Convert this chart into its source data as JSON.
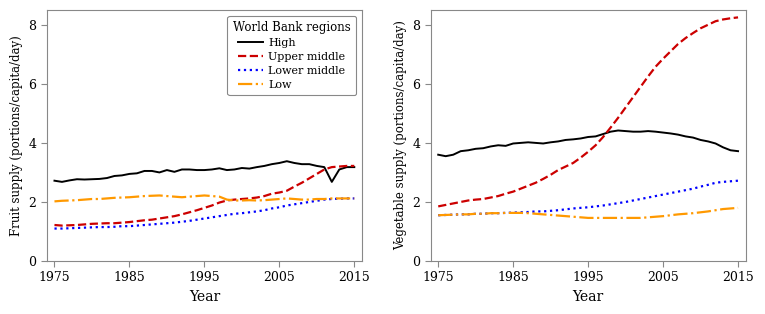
{
  "years": [
    1975,
    1976,
    1977,
    1978,
    1979,
    1980,
    1981,
    1982,
    1983,
    1984,
    1985,
    1986,
    1987,
    1988,
    1989,
    1990,
    1991,
    1992,
    1993,
    1994,
    1995,
    1996,
    1997,
    1998,
    1999,
    2000,
    2001,
    2002,
    2003,
    2004,
    2005,
    2006,
    2007,
    2008,
    2009,
    2010,
    2011,
    2012,
    2013,
    2014,
    2015
  ],
  "fruit_high": [
    2.72,
    2.68,
    2.73,
    2.77,
    2.76,
    2.77,
    2.78,
    2.81,
    2.88,
    2.9,
    2.95,
    2.97,
    3.05,
    3.05,
    3.0,
    3.08,
    3.02,
    3.1,
    3.1,
    3.08,
    3.08,
    3.1,
    3.14,
    3.08,
    3.1,
    3.15,
    3.13,
    3.18,
    3.22,
    3.28,
    3.32,
    3.38,
    3.32,
    3.28,
    3.28,
    3.22,
    3.18,
    2.68,
    3.1,
    3.18,
    3.18
  ],
  "fruit_upper_middle": [
    1.22,
    1.2,
    1.21,
    1.22,
    1.24,
    1.26,
    1.27,
    1.28,
    1.28,
    1.3,
    1.32,
    1.35,
    1.38,
    1.4,
    1.44,
    1.48,
    1.52,
    1.58,
    1.65,
    1.72,
    1.8,
    1.88,
    1.98,
    2.05,
    2.08,
    2.1,
    2.12,
    2.15,
    2.2,
    2.28,
    2.32,
    2.38,
    2.52,
    2.65,
    2.8,
    2.95,
    3.1,
    3.18,
    3.2,
    3.22,
    3.22
  ],
  "fruit_lower_middle": [
    1.1,
    1.1,
    1.11,
    1.12,
    1.13,
    1.14,
    1.15,
    1.15,
    1.16,
    1.18,
    1.18,
    1.2,
    1.22,
    1.24,
    1.26,
    1.28,
    1.3,
    1.33,
    1.36,
    1.4,
    1.44,
    1.48,
    1.52,
    1.56,
    1.6,
    1.62,
    1.65,
    1.68,
    1.72,
    1.78,
    1.82,
    1.88,
    1.92,
    1.96,
    2.0,
    2.04,
    2.08,
    2.1,
    2.11,
    2.12,
    2.12
  ],
  "fruit_low": [
    2.02,
    2.04,
    2.05,
    2.06,
    2.08,
    2.1,
    2.1,
    2.12,
    2.14,
    2.15,
    2.16,
    2.18,
    2.2,
    2.21,
    2.22,
    2.2,
    2.18,
    2.16,
    2.18,
    2.2,
    2.22,
    2.2,
    2.18,
    2.08,
    2.05,
    2.05,
    2.06,
    2.05,
    2.06,
    2.08,
    2.1,
    2.12,
    2.1,
    2.08,
    2.08,
    2.1,
    2.1,
    2.12,
    2.12,
    2.12,
    2.12
  ],
  "veg_high": [
    3.6,
    3.55,
    3.6,
    3.72,
    3.75,
    3.8,
    3.82,
    3.88,
    3.92,
    3.9,
    3.98,
    4.0,
    4.02,
    4.0,
    3.98,
    4.02,
    4.05,
    4.1,
    4.12,
    4.15,
    4.2,
    4.22,
    4.3,
    4.38,
    4.42,
    4.4,
    4.38,
    4.38,
    4.4,
    4.38,
    4.35,
    4.32,
    4.28,
    4.22,
    4.18,
    4.1,
    4.05,
    3.98,
    3.85,
    3.75,
    3.72
  ],
  "veg_upper_middle": [
    1.85,
    1.9,
    1.95,
    2.0,
    2.05,
    2.08,
    2.1,
    2.15,
    2.2,
    2.28,
    2.35,
    2.45,
    2.55,
    2.65,
    2.78,
    2.92,
    3.08,
    3.2,
    3.32,
    3.5,
    3.7,
    3.92,
    4.2,
    4.52,
    4.85,
    5.2,
    5.55,
    5.9,
    6.25,
    6.58,
    6.85,
    7.1,
    7.35,
    7.55,
    7.72,
    7.88,
    8.0,
    8.12,
    8.18,
    8.22,
    8.25
  ],
  "veg_lower_middle": [
    1.55,
    1.56,
    1.57,
    1.58,
    1.58,
    1.6,
    1.6,
    1.62,
    1.62,
    1.63,
    1.64,
    1.65,
    1.66,
    1.68,
    1.68,
    1.7,
    1.72,
    1.75,
    1.78,
    1.8,
    1.82,
    1.85,
    1.88,
    1.92,
    1.96,
    2.0,
    2.05,
    2.1,
    2.15,
    2.2,
    2.25,
    2.3,
    2.35,
    2.4,
    2.45,
    2.52,
    2.58,
    2.65,
    2.68,
    2.7,
    2.72
  ],
  "veg_low": [
    1.55,
    1.56,
    1.57,
    1.58,
    1.58,
    1.6,
    1.6,
    1.62,
    1.62,
    1.63,
    1.63,
    1.63,
    1.62,
    1.6,
    1.58,
    1.56,
    1.54,
    1.52,
    1.5,
    1.48,
    1.46,
    1.46,
    1.46,
    1.46,
    1.46,
    1.46,
    1.46,
    1.46,
    1.48,
    1.5,
    1.52,
    1.55,
    1.58,
    1.6,
    1.62,
    1.65,
    1.68,
    1.72,
    1.76,
    1.78,
    1.8
  ],
  "colors": {
    "high": "#000000",
    "upper_middle": "#CC0000",
    "lower_middle": "#0000FF",
    "low": "#FF9900"
  },
  "linestyles": {
    "high": "-",
    "upper_middle": "--",
    "lower_middle": ":",
    "low": "-."
  },
  "linewidths": {
    "high": 1.4,
    "upper_middle": 1.6,
    "lower_middle": 1.6,
    "low": 1.6
  },
  "legend_labels": [
    "High",
    "Upper middle",
    "Lower middle",
    "Low"
  ],
  "legend_title": "World Bank regions",
  "fruit_ylabel": "Fruit supply (portions/capita/day)",
  "veg_ylabel": "Vegetable supply (portions/capita/day)",
  "xlabel": "Year",
  "ylim": [
    0,
    8.5
  ],
  "yticks": [
    0,
    2,
    4,
    6,
    8
  ],
  "xlim": [
    1974,
    2016
  ],
  "xticks": [
    1975,
    1985,
    1995,
    2005,
    2015
  ],
  "background_color": "#ffffff"
}
